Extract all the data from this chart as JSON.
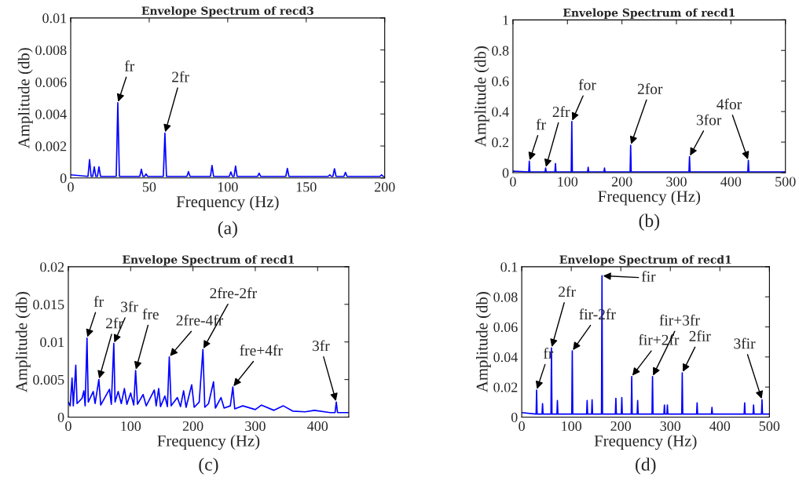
{
  "chart_data": [
    {
      "type": "line",
      "title": "Envelope Spectrum of recd3",
      "xlabel": "Frequency (Hz)",
      "ylabel": "Amplitude (db)",
      "x": [
        0,
        11,
        12,
        13,
        14,
        15,
        16,
        17,
        18,
        19,
        29,
        30,
        31,
        44,
        45,
        46,
        47,
        48,
        49,
        59,
        60,
        61,
        74,
        75,
        76,
        89,
        90,
        91,
        101,
        102,
        103,
        104,
        105,
        106,
        119,
        120,
        121,
        137,
        138,
        139,
        164,
        165,
        166,
        167,
        168,
        169,
        174,
        175,
        176,
        197,
        198,
        199,
        200
      ],
      "series": [
        {
          "color": "#0000ff",
          "values": [
            0.0002,
            0.0001,
            0.00115,
            0.0001,
            0.0001,
            0.0007,
            0.0001,
            0.0001,
            0.0007,
            0.0001,
            0.0001,
            0.0047,
            0.0001,
            0.0001,
            0.00055,
            0.0001,
            0.0001,
            0.00025,
            0.0001,
            0.0001,
            0.0028,
            0.0001,
            0.0001,
            0.0004,
            0.0001,
            0.0001,
            0.00078,
            0.0001,
            0.0001,
            0.00038,
            0.0001,
            0.0001,
            0.00075,
            0.0001,
            0.0001,
            0.0003,
            0.0001,
            0.0001,
            0.0006,
            0.0001,
            0.0001,
            0.0002,
            0.0001,
            0.0001,
            0.00058,
            0.0001,
            0.0001,
            0.00035,
            0.0001,
            0.0001,
            0.0002,
            0.0001,
            0.0001
          ]
        }
      ],
      "xlim": [
        0,
        200
      ],
      "ylim": [
        0,
        0.01
      ],
      "xticks": [
        0,
        50,
        100,
        150,
        200
      ],
      "yticks": [
        0,
        0.002,
        0.004,
        0.006,
        0.008,
        0.01
      ],
      "annotations": [
        {
          "text": "fr",
          "x": 30,
          "y": 0.0047
        },
        {
          "text": "2fr",
          "x": 60,
          "y": 0.0028
        },
        "(a)"
      ]
    },
    {
      "type": "line",
      "title": "Envelope Spectrum of recd1",
      "xlabel": "Frequency (Hz)",
      "ylabel": "Amplitude (db)",
      "x": [
        0,
        29,
        30,
        31,
        59,
        60,
        61,
        77,
        78,
        79,
        107,
        108,
        109,
        137,
        138,
        139,
        167,
        168,
        169,
        215,
        216,
        217,
        323,
        324,
        325,
        431,
        432,
        433,
        500
      ],
      "series": [
        {
          "color": "#0000ff",
          "values": [
            0.01,
            0.005,
            0.075,
            0.005,
            0.005,
            0.03,
            0.005,
            0.005,
            0.06,
            0.005,
            0.005,
            0.335,
            0.005,
            0.005,
            0.035,
            0.005,
            0.005,
            0.03,
            0.005,
            0.005,
            0.18,
            0.005,
            0.005,
            0.105,
            0.005,
            0.005,
            0.08,
            0.005,
            0.005
          ]
        }
      ],
      "xlim": [
        0,
        500
      ],
      "ylim": [
        0,
        1
      ],
      "xticks": [
        0,
        100,
        200,
        300,
        400,
        500
      ],
      "yticks": [
        0,
        0.2,
        0.4,
        0.6,
        0.8,
        1
      ],
      "annotations": [
        {
          "text": "fr",
          "x": 30,
          "y": 0.075
        },
        {
          "text": "2fr",
          "x": 60,
          "y": 0.03
        },
        {
          "text": "for",
          "x": 108,
          "y": 0.335
        },
        {
          "text": "2for",
          "x": 216,
          "y": 0.18
        },
        {
          "text": "3for",
          "x": 324,
          "y": 0.105
        },
        {
          "text": "4for",
          "x": 432,
          "y": 0.08
        },
        "(b)"
      ]
    },
    {
      "type": "line",
      "title": "Envelope Spectrum of recd1",
      "xlabel": "Frequency (Hz)",
      "ylabel": "Amplitude (db)",
      "x": [
        0,
        3,
        6,
        8,
        12,
        14,
        22,
        25,
        27,
        30,
        32,
        40,
        43,
        49,
        52,
        60,
        66,
        69,
        73,
        75,
        80,
        85,
        90,
        94,
        100,
        105,
        108,
        111,
        120,
        125,
        138,
        141,
        145,
        148,
        155,
        159,
        162,
        165,
        175,
        180,
        185,
        189,
        198,
        202,
        210,
        216,
        219,
        225,
        233,
        236,
        245,
        250,
        260,
        264,
        267,
        280,
        300,
        310,
        330,
        345,
        360,
        380,
        395,
        420,
        428,
        430,
        432,
        450
      ],
      "series": [
        {
          "color": "#0000ff",
          "values": [
            0.002,
            0.0015,
            0.0052,
            0.0015,
            0.0069,
            0.0018,
            0.0025,
            0.0035,
            0.0015,
            0.0105,
            0.002,
            0.0034,
            0.0018,
            0.005,
            0.0016,
            0.0028,
            0.0037,
            0.0017,
            0.0098,
            0.002,
            0.0034,
            0.0018,
            0.0038,
            0.0017,
            0.0032,
            0.0016,
            0.0062,
            0.0017,
            0.003,
            0.0015,
            0.0036,
            0.0015,
            0.0038,
            0.0014,
            0.0028,
            0.0014,
            0.008,
            0.0015,
            0.0026,
            0.0014,
            0.0035,
            0.0013,
            0.0043,
            0.0013,
            0.002,
            0.009,
            0.0013,
            0.0018,
            0.0047,
            0.0012,
            0.0026,
            0.0012,
            0.0015,
            0.004,
            0.0011,
            0.0015,
            0.001,
            0.0016,
            0.0009,
            0.0015,
            0.0008,
            0.0007,
            0.0009,
            0.0006,
            0.0006,
            0.002,
            0.0006,
            0.0006
          ]
        }
      ],
      "xlim": [
        0,
        450
      ],
      "ylim": [
        0,
        0.02
      ],
      "xticks": [
        0,
        100,
        200,
        300,
        400
      ],
      "yticks": [
        0,
        0.005,
        0.01,
        0.015,
        0.02
      ],
      "annotations": [
        {
          "text": "fr",
          "x": 30,
          "y": 0.0105
        },
        {
          "text": "2fr",
          "x": 49,
          "y": 0.005
        },
        {
          "text": "3fr",
          "x": 73,
          "y": 0.0098
        },
        {
          "text": "fre",
          "x": 108,
          "y": 0.0062
        },
        {
          "text": "2fre-4fr",
          "x": 162,
          "y": 0.008
        },
        {
          "text": "2fre-2fr",
          "x": 216,
          "y": 0.009
        },
        {
          "text": "fre+4fr",
          "x": 264,
          "y": 0.004
        },
        {
          "text": "3fr",
          "x": 430,
          "y": 0.002
        },
        "(c)"
      ]
    },
    {
      "type": "line",
      "title": "Envelope Spectrum of recd1",
      "xlabel": "Frequency (Hz)",
      "ylabel": "Amplitude (db)",
      "x": [
        0,
        29,
        30,
        31,
        41,
        42,
        43,
        59,
        60,
        61,
        71,
        72,
        73,
        101,
        102,
        103,
        131,
        132,
        133,
        141,
        142,
        143,
        161,
        162,
        163,
        189,
        190,
        191,
        201,
        202,
        203,
        221,
        222,
        223,
        233,
        234,
        235,
        263,
        264,
        265,
        287,
        288,
        289,
        293,
        294,
        295,
        323,
        324,
        325,
        353,
        354,
        355,
        383,
        384,
        385,
        449,
        450,
        451,
        467,
        468,
        469,
        484,
        485,
        486,
        500
      ],
      "series": [
        {
          "color": "#0000ff",
          "values": [
            0.003,
            0.002,
            0.018,
            0.002,
            0.002,
            0.009,
            0.002,
            0.002,
            0.046,
            0.002,
            0.002,
            0.011,
            0.002,
            0.002,
            0.044,
            0.002,
            0.002,
            0.011,
            0.002,
            0.002,
            0.0115,
            0.002,
            0.002,
            0.094,
            0.002,
            0.002,
            0.0125,
            0.002,
            0.002,
            0.013,
            0.002,
            0.002,
            0.027,
            0.002,
            0.002,
            0.011,
            0.002,
            0.002,
            0.027,
            0.002,
            0.002,
            0.008,
            0.002,
            0.002,
            0.008,
            0.002,
            0.002,
            0.0295,
            0.002,
            0.002,
            0.0095,
            0.002,
            0.002,
            0.0065,
            0.002,
            0.002,
            0.0095,
            0.002,
            0.002,
            0.008,
            0.002,
            0.002,
            0.0115,
            0.002,
            0.002
          ]
        }
      ],
      "xlim": [
        0,
        500
      ],
      "ylim": [
        0,
        0.1
      ],
      "xticks": [
        0,
        100,
        200,
        300,
        400,
        500
      ],
      "yticks": [
        0,
        0.02,
        0.04,
        0.06,
        0.08,
        0.1
      ],
      "annotations": [
        {
          "text": "fr",
          "x": 30,
          "y": 0.018
        },
        {
          "text": "2fr",
          "x": 60,
          "y": 0.046
        },
        {
          "text": "fir-2fr",
          "x": 102,
          "y": 0.044
        },
        {
          "text": "fir",
          "x": 162,
          "y": 0.094
        },
        {
          "text": "fir+2fr",
          "x": 222,
          "y": 0.027
        },
        {
          "text": "fir+3fr",
          "x": 264,
          "y": 0.027
        },
        {
          "text": "2fir",
          "x": 324,
          "y": 0.0295
        },
        {
          "text": "3fir",
          "x": 485,
          "y": 0.0115
        },
        "(d)"
      ]
    }
  ]
}
